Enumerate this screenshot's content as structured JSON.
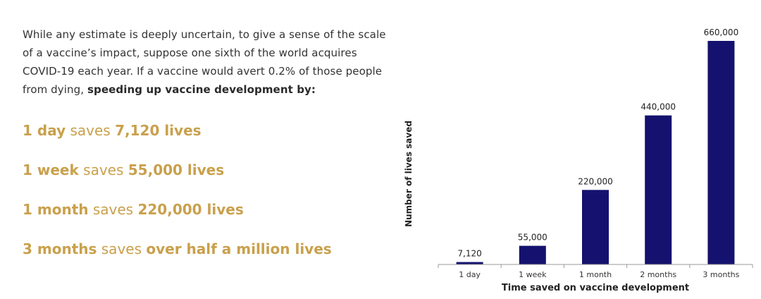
{
  "intro": {
    "text": "While any estimate is deeply uncertain, to give a sense of the scale of a vaccine’s impact, suppose one sixth of the world acquires COVID-19 each year. If a vaccine would avert 0.2% of those people from dying, ",
    "bold": "speeding up vaccine development by:"
  },
  "savings": [
    {
      "period": "1 day",
      "verb": "saves",
      "amount": "7,120 lives"
    },
    {
      "period": "1 week",
      "verb": "saves",
      "amount": "55,000 lives"
    },
    {
      "period": "1 month",
      "verb": "saves",
      "amount": "220,000 lives"
    },
    {
      "period": "3 months",
      "verb": "saves",
      "amount": "over half a million lives"
    }
  ],
  "colors": {
    "bar": "#14126e",
    "highlight": "#c9a04c",
    "text": "#333333"
  },
  "chart_data": {
    "type": "bar",
    "categories": [
      "1 day",
      "1 week",
      "1 month",
      "2 months",
      "3 months"
    ],
    "values": [
      7120,
      55000,
      220000,
      440000,
      660000
    ],
    "data_labels": [
      "7,120",
      "55,000",
      "220,000",
      "440,000",
      "660,000"
    ],
    "title": "",
    "xlabel": "Time saved on vaccine development",
    "ylabel": "Number of lives saved",
    "ylim": [
      0,
      660000
    ],
    "grid": false,
    "legend": "none"
  }
}
